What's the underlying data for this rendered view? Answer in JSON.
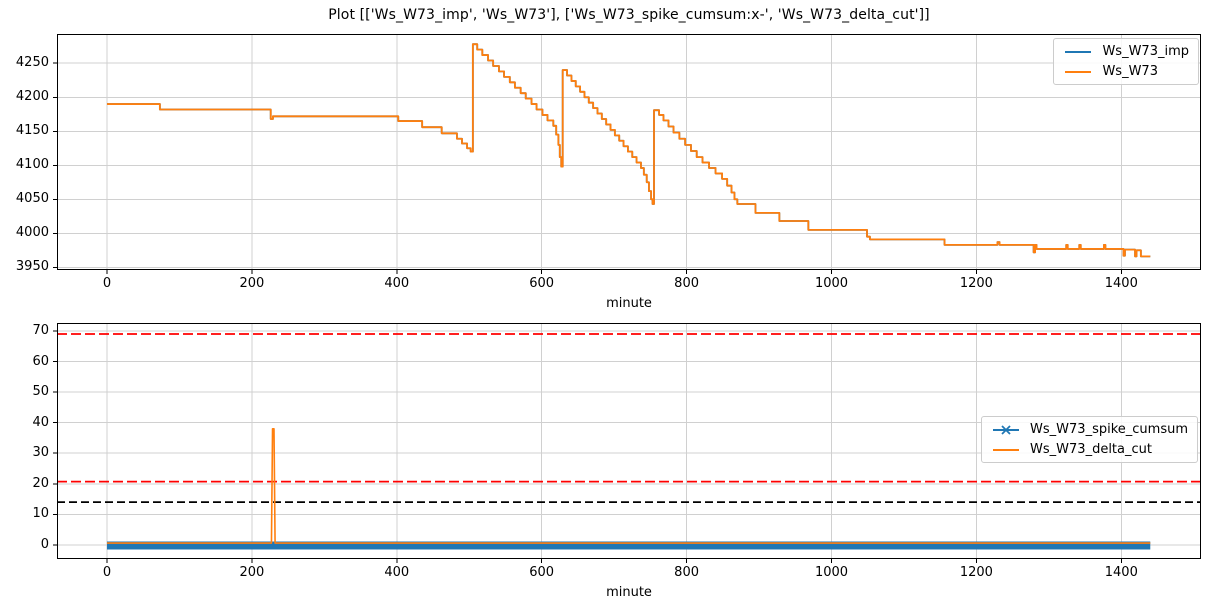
{
  "colors": {
    "blue": "#1f77b4",
    "orange": "#ff7f0e",
    "red": "#ff0000",
    "black": "#000000",
    "grid": "#d0d0d0",
    "spine": "#000000"
  },
  "chart_data": [
    {
      "type": "line",
      "title": "Plot [['Ws_W73_imp', 'Ws_W73'], ['Ws_W73_spike_cumsum:x-', 'Ws_W73_delta_cut']]",
      "xlabel": "minute",
      "xlim": [
        -69,
        1510
      ],
      "ylim": [
        3946,
        4293
      ],
      "xticks": [
        0,
        200,
        400,
        600,
        800,
        1000,
        1200,
        1400
      ],
      "yticks": [
        3950,
        4000,
        4050,
        4100,
        4150,
        4200,
        4250
      ],
      "grid": true,
      "legend": {
        "position": "upper right",
        "entries": [
          {
            "label": "Ws_W73_imp",
            "color": "#1f77b4",
            "marker": "none"
          },
          {
            "label": "Ws_W73",
            "color": "#ff7f0e",
            "marker": "none"
          }
        ]
      },
      "series": [
        {
          "name": "Ws_W73_imp",
          "color": "#1f77b4",
          "linewidth": 1.8,
          "same_as": "Ws_W73",
          "note": "coincides with Ws_W73 and is hidden beneath it"
        },
        {
          "name": "Ws_W73",
          "color": "#ff7f0e",
          "linewidth": 1.8,
          "points": [
            [
              0,
              4190
            ],
            [
              73,
              4190
            ],
            [
              73,
              4182
            ],
            [
              226,
              4182
            ],
            [
              226,
              4168
            ],
            [
              229,
              4168
            ],
            [
              229,
              4172
            ],
            [
              402,
              4172
            ],
            [
              402,
              4165
            ],
            [
              435,
              4165
            ],
            [
              435,
              4156
            ],
            [
              462,
              4156
            ],
            [
              462,
              4147
            ],
            [
              483,
              4147
            ],
            [
              483,
              4139
            ],
            [
              490,
              4139
            ],
            [
              490,
              4132
            ],
            [
              497,
              4132
            ],
            [
              497,
              4125
            ],
            [
              502,
              4125
            ],
            [
              502,
              4120
            ],
            [
              505,
              4120
            ],
            [
              505,
              4278
            ],
            [
              511,
              4278
            ],
            [
              511,
              4270
            ],
            [
              518,
              4270
            ],
            [
              518,
              4262
            ],
            [
              526,
              4262
            ],
            [
              526,
              4254
            ],
            [
              533,
              4254
            ],
            [
              533,
              4246
            ],
            [
              541,
              4246
            ],
            [
              541,
              4238
            ],
            [
              548,
              4238
            ],
            [
              548,
              4230
            ],
            [
              556,
              4230
            ],
            [
              556,
              4222
            ],
            [
              563,
              4222
            ],
            [
              563,
              4214
            ],
            [
              571,
              4214
            ],
            [
              571,
              4206
            ],
            [
              578,
              4206
            ],
            [
              578,
              4198
            ],
            [
              586,
              4198
            ],
            [
              586,
              4190
            ],
            [
              593,
              4190
            ],
            [
              593,
              4182
            ],
            [
              601,
              4182
            ],
            [
              601,
              4174
            ],
            [
              608,
              4174
            ],
            [
              608,
              4166
            ],
            [
              616,
              4166
            ],
            [
              616,
              4158
            ],
            [
              620,
              4158
            ],
            [
              620,
              4145
            ],
            [
              623,
              4145
            ],
            [
              623,
              4130
            ],
            [
              625,
              4130
            ],
            [
              625,
              4112
            ],
            [
              627,
              4112
            ],
            [
              627,
              4098
            ],
            [
              629,
              4098
            ],
            [
              629,
              4240
            ],
            [
              635,
              4240
            ],
            [
              635,
              4232
            ],
            [
              641,
              4232
            ],
            [
              641,
              4224
            ],
            [
              647,
              4224
            ],
            [
              647,
              4216
            ],
            [
              653,
              4216
            ],
            [
              653,
              4208
            ],
            [
              659,
              4208
            ],
            [
              659,
              4200
            ],
            [
              665,
              4200
            ],
            [
              665,
              4192
            ],
            [
              671,
              4192
            ],
            [
              671,
              4184
            ],
            [
              677,
              4184
            ],
            [
              677,
              4176
            ],
            [
              683,
              4176
            ],
            [
              683,
              4168
            ],
            [
              689,
              4168
            ],
            [
              689,
              4160
            ],
            [
              695,
              4160
            ],
            [
              695,
              4152
            ],
            [
              701,
              4152
            ],
            [
              701,
              4144
            ],
            [
              707,
              4144
            ],
            [
              707,
              4136
            ],
            [
              713,
              4136
            ],
            [
              713,
              4128
            ],
            [
              719,
              4128
            ],
            [
              719,
              4120
            ],
            [
              725,
              4120
            ],
            [
              725,
              4112
            ],
            [
              731,
              4112
            ],
            [
              731,
              4104
            ],
            [
              737,
              4104
            ],
            [
              737,
              4096
            ],
            [
              741,
              4096
            ],
            [
              741,
              4086
            ],
            [
              745,
              4086
            ],
            [
              745,
              4075
            ],
            [
              748,
              4075
            ],
            [
              748,
              4062
            ],
            [
              751,
              4062
            ],
            [
              751,
              4050
            ],
            [
              753,
              4050
            ],
            [
              753,
              4043
            ],
            [
              755,
              4043
            ],
            [
              755,
              4181
            ],
            [
              762,
              4181
            ],
            [
              762,
              4174
            ],
            [
              768,
              4174
            ],
            [
              768,
              4166
            ],
            [
              775,
              4166
            ],
            [
              775,
              4157
            ],
            [
              782,
              4157
            ],
            [
              782,
              4148
            ],
            [
              790,
              4148
            ],
            [
              790,
              4139
            ],
            [
              798,
              4139
            ],
            [
              798,
              4130
            ],
            [
              806,
              4130
            ],
            [
              806,
              4121
            ],
            [
              814,
              4121
            ],
            [
              814,
              4112
            ],
            [
              822,
              4112
            ],
            [
              822,
              4104
            ],
            [
              831,
              4104
            ],
            [
              831,
              4096
            ],
            [
              840,
              4096
            ],
            [
              840,
              4088
            ],
            [
              849,
              4088
            ],
            [
              849,
              4080
            ],
            [
              856,
              4080
            ],
            [
              856,
              4070
            ],
            [
              862,
              4070
            ],
            [
              862,
              4060
            ],
            [
              866,
              4060
            ],
            [
              866,
              4050
            ],
            [
              870,
              4050
            ],
            [
              870,
              4043
            ],
            [
              895,
              4043
            ],
            [
              895,
              4030
            ],
            [
              928,
              4030
            ],
            [
              928,
              4018
            ],
            [
              968,
              4018
            ],
            [
              968,
              4005
            ],
            [
              1049,
              4005
            ],
            [
              1049,
              3995
            ],
            [
              1053,
              3995
            ],
            [
              1053,
              3991
            ],
            [
              1156,
              3991
            ],
            [
              1156,
              3983
            ],
            [
              1229,
              3983
            ],
            [
              1229,
              3987
            ],
            [
              1232,
              3987
            ],
            [
              1232,
              3983
            ],
            [
              1279,
              3983
            ],
            [
              1279,
              3972
            ],
            [
              1281,
              3972
            ],
            [
              1281,
              3983
            ],
            [
              1283,
              3983
            ],
            [
              1283,
              3977
            ],
            [
              1324,
              3977
            ],
            [
              1324,
              3983
            ],
            [
              1326,
              3983
            ],
            [
              1326,
              3977
            ],
            [
              1342,
              3977
            ],
            [
              1342,
              3983
            ],
            [
              1344,
              3983
            ],
            [
              1344,
              3977
            ],
            [
              1376,
              3977
            ],
            [
              1376,
              3983
            ],
            [
              1378,
              3983
            ],
            [
              1378,
              3977
            ],
            [
              1403,
              3977
            ],
            [
              1403,
              3967
            ],
            [
              1405,
              3967
            ],
            [
              1405,
              3976
            ],
            [
              1419,
              3976
            ],
            [
              1419,
              3966
            ],
            [
              1421,
              3966
            ],
            [
              1421,
              3975
            ],
            [
              1427,
              3975
            ],
            [
              1427,
              3966
            ],
            [
              1440,
              3966
            ]
          ]
        }
      ]
    },
    {
      "type": "line",
      "title": "",
      "xlabel": "minute",
      "xlim": [
        -69,
        1510
      ],
      "ylim": [
        -4.6,
        72.6
      ],
      "xticks": [
        0,
        200,
        400,
        600,
        800,
        1000,
        1200,
        1400
      ],
      "yticks": [
        0,
        10,
        20,
        30,
        40,
        50,
        60,
        70
      ],
      "grid": true,
      "legend": {
        "position": "center right",
        "entries": [
          {
            "label": "Ws_W73_spike_cumsum",
            "color": "#1f77b4",
            "marker": "x"
          },
          {
            "label": "Ws_W73_delta_cut",
            "color": "#ff7f0e",
            "marker": "none"
          }
        ]
      },
      "hlines": [
        {
          "y": 69,
          "color": "#ff0000",
          "style": "dashed"
        },
        {
          "y": 20.7,
          "color": "#ff0000",
          "style": "dashed"
        },
        {
          "y": 14,
          "color": "#000000",
          "style": "dashed"
        }
      ],
      "series": [
        {
          "name": "Ws_W73_spike_cumsum",
          "color": "#1f77b4",
          "marker": "x",
          "linewidth": 8,
          "note": "flat at 0 with dense x markers forming a thick band",
          "points": [
            [
              0,
              -0.2
            ],
            [
              1440,
              -0.2
            ]
          ]
        },
        {
          "name": "Ws_W73_delta_cut",
          "color": "#ff7f0e",
          "linewidth": 1.6,
          "points": [
            [
              0,
              0.6
            ],
            [
              227,
              0.6
            ],
            [
              228.5,
              38
            ],
            [
              230.5,
              38
            ],
            [
              232,
              0.6
            ],
            [
              1440,
              0.6
            ]
          ]
        }
      ]
    }
  ]
}
